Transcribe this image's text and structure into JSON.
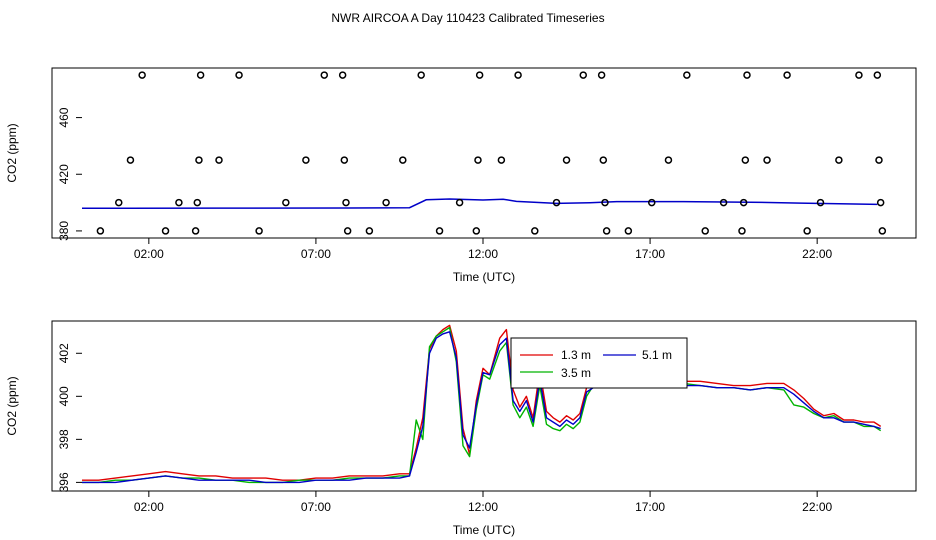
{
  "title": "NWR AIRCOA A  Day 110423  Calibrated Timeseries",
  "colors": {
    "s1": "#e00000",
    "s2": "#00b400",
    "s3": "#0000c8",
    "axis": "#000000"
  },
  "chart_data": [
    {
      "type": "scatter",
      "xlabel": "Time (UTC)",
      "ylabel": "CO2 (ppm)",
      "xlim": [
        0,
        24
      ],
      "ylim": [
        375,
        495
      ],
      "x_ticks": [
        2,
        7,
        12,
        17,
        22
      ],
      "x_tick_labels": [
        "02:00",
        "07:00",
        "12:00",
        "17:00",
        "22:00"
      ],
      "y_ticks": [
        380,
        420,
        460
      ],
      "y_tick_labels": [
        "380",
        "420",
        "460"
      ],
      "marker_series": {
        "name": "",
        "points": [
          [
            0.55,
            380
          ],
          [
            1.1,
            400
          ],
          [
            1.45,
            430
          ],
          [
            1.8,
            490
          ],
          [
            2.5,
            380
          ],
          [
            2.9,
            400
          ],
          [
            3.4,
            380
          ],
          [
            3.45,
            400
          ],
          [
            3.5,
            430
          ],
          [
            3.55,
            490
          ],
          [
            4.1,
            430
          ],
          [
            4.7,
            490
          ],
          [
            5.3,
            380
          ],
          [
            6.1,
            400
          ],
          [
            6.7,
            430
          ],
          [
            7.25,
            490
          ],
          [
            7.8,
            490
          ],
          [
            7.85,
            430
          ],
          [
            7.9,
            400
          ],
          [
            7.95,
            380
          ],
          [
            8.6,
            380
          ],
          [
            9.1,
            400
          ],
          [
            9.6,
            430
          ],
          [
            10.15,
            490
          ],
          [
            10.7,
            380
          ],
          [
            11.3,
            400
          ],
          [
            11.8,
            380
          ],
          [
            11.85,
            430
          ],
          [
            11.9,
            490
          ],
          [
            12.55,
            430
          ],
          [
            13.05,
            490
          ],
          [
            13.55,
            380
          ],
          [
            14.2,
            400
          ],
          [
            14.5,
            430
          ],
          [
            15.0,
            490
          ],
          [
            15.55,
            490
          ],
          [
            15.6,
            430
          ],
          [
            15.65,
            400
          ],
          [
            15.7,
            380
          ],
          [
            16.35,
            380
          ],
          [
            17.05,
            400
          ],
          [
            17.55,
            430
          ],
          [
            18.1,
            490
          ],
          [
            18.65,
            380
          ],
          [
            19.2,
            400
          ],
          [
            19.75,
            380
          ],
          [
            19.8,
            400
          ],
          [
            19.85,
            430
          ],
          [
            19.9,
            490
          ],
          [
            20.5,
            430
          ],
          [
            21.1,
            490
          ],
          [
            21.7,
            380
          ],
          [
            22.1,
            400
          ],
          [
            22.65,
            430
          ],
          [
            23.25,
            490
          ],
          [
            23.8,
            490
          ],
          [
            23.85,
            430
          ],
          [
            23.9,
            400
          ],
          [
            23.95,
            380
          ]
        ]
      },
      "line_series": {
        "name": "",
        "points": [
          [
            0.0,
            396.0
          ],
          [
            4.0,
            396.1
          ],
          [
            8.0,
            396.2
          ],
          [
            9.8,
            396.4
          ],
          [
            10.3,
            402.0
          ],
          [
            11.0,
            402.5
          ],
          [
            12.0,
            401.8
          ],
          [
            12.6,
            402.4
          ],
          [
            13.0,
            400.8
          ],
          [
            14.2,
            399.4
          ],
          [
            15.2,
            399.9
          ],
          [
            16.0,
            400.7
          ],
          [
            18.0,
            400.7
          ],
          [
            20.0,
            400.3
          ],
          [
            21.5,
            399.6
          ],
          [
            23.8,
            398.7
          ]
        ]
      }
    },
    {
      "type": "line",
      "xlabel": "Time (UTC)",
      "ylabel": "CO2 (ppm)",
      "xlim": [
        0,
        24
      ],
      "ylim": [
        395.6,
        403.5
      ],
      "x_ticks": [
        2,
        7,
        12,
        17,
        22
      ],
      "x_tick_labels": [
        "02:00",
        "07:00",
        "12:00",
        "17:00",
        "22:00"
      ],
      "y_ticks": [
        396,
        398,
        400,
        402
      ],
      "y_tick_labels": [
        "396",
        "398",
        "400",
        "402"
      ],
      "legend": {
        "placement": "top-center",
        "entries": [
          "1.3 m",
          "5.1 m",
          "3.5 m"
        ]
      },
      "series": [
        {
          "name": "1.3 m",
          "color_key": "s1",
          "x": [
            0.0,
            0.5,
            1.0,
            1.5,
            2.0,
            2.5,
            3.0,
            3.5,
            4.0,
            4.5,
            5.0,
            5.5,
            6.0,
            6.5,
            7.0,
            7.5,
            8.0,
            8.5,
            9.0,
            9.5,
            9.8,
            10.0,
            10.2,
            10.4,
            10.6,
            10.8,
            11.0,
            11.2,
            11.4,
            11.6,
            11.8,
            12.0,
            12.2,
            12.5,
            12.7,
            12.9,
            13.1,
            13.3,
            13.5,
            13.7,
            13.9,
            14.1,
            14.3,
            14.5,
            14.7,
            14.9,
            15.1,
            15.3,
            15.5,
            15.8,
            16.0,
            16.5,
            17.0,
            17.5,
            18.0,
            18.5,
            19.0,
            19.5,
            20.0,
            20.5,
            21.0,
            21.3,
            21.6,
            21.9,
            22.2,
            22.5,
            22.8,
            23.1,
            23.4,
            23.7,
            23.9
          ],
          "y": [
            396.1,
            396.1,
            396.2,
            396.3,
            396.4,
            396.5,
            396.4,
            396.3,
            396.3,
            396.2,
            396.2,
            396.2,
            396.1,
            396.1,
            396.2,
            396.2,
            396.3,
            396.3,
            396.3,
            396.4,
            396.4,
            397.6,
            399.0,
            402.2,
            402.8,
            403.1,
            403.3,
            402.1,
            398.5,
            397.3,
            399.8,
            401.3,
            401.0,
            402.7,
            403.1,
            400.3,
            399.5,
            400.0,
            399.0,
            401.2,
            399.3,
            399.0,
            398.8,
            399.1,
            398.9,
            399.2,
            400.4,
            400.6,
            400.8,
            400.9,
            400.9,
            400.9,
            400.8,
            400.8,
            400.7,
            400.7,
            400.6,
            400.5,
            400.5,
            400.6,
            400.6,
            400.3,
            399.9,
            399.4,
            399.1,
            399.2,
            398.9,
            398.9,
            398.8,
            398.8,
            398.6
          ]
        },
        {
          "name": "5.1 m",
          "color_key": "s3",
          "x": [
            0.0,
            0.5,
            1.0,
            1.5,
            2.0,
            2.5,
            3.0,
            3.5,
            4.0,
            4.5,
            5.0,
            5.5,
            6.0,
            6.5,
            7.0,
            7.5,
            8.0,
            8.5,
            9.0,
            9.5,
            9.8,
            10.0,
            10.2,
            10.4,
            10.6,
            10.8,
            11.0,
            11.2,
            11.4,
            11.6,
            11.8,
            12.0,
            12.2,
            12.5,
            12.7,
            12.9,
            13.1,
            13.3,
            13.5,
            13.7,
            13.9,
            14.1,
            14.3,
            14.5,
            14.7,
            14.9,
            15.1,
            15.3,
            15.5,
            15.8,
            16.0,
            16.5,
            17.0,
            17.5,
            18.0,
            18.5,
            19.0,
            19.5,
            20.0,
            20.5,
            21.0,
            21.3,
            21.6,
            21.9,
            22.2,
            22.5,
            22.8,
            23.1,
            23.4,
            23.7,
            23.9
          ],
          "y": [
            396.0,
            396.0,
            396.0,
            396.1,
            396.2,
            396.3,
            396.2,
            396.1,
            396.1,
            396.1,
            396.1,
            396.0,
            396.0,
            396.0,
            396.1,
            396.1,
            396.1,
            396.2,
            396.2,
            396.2,
            396.3,
            397.4,
            398.6,
            402.0,
            402.7,
            402.9,
            403.0,
            401.8,
            398.2,
            397.6,
            399.6,
            401.1,
            401.0,
            402.4,
            402.7,
            399.8,
            399.3,
            399.8,
            398.8,
            400.8,
            399.0,
            398.8,
            398.6,
            398.9,
            398.7,
            399.0,
            400.2,
            400.4,
            400.6,
            400.7,
            400.7,
            400.7,
            400.6,
            400.6,
            400.5,
            400.5,
            400.4,
            400.4,
            400.3,
            400.4,
            400.4,
            400.1,
            399.7,
            399.3,
            399.0,
            399.0,
            398.8,
            398.8,
            398.7,
            398.6,
            398.5
          ]
        },
        {
          "name": "3.5 m",
          "color_key": "s2",
          "x": [
            0.0,
            0.5,
            1.0,
            1.5,
            2.0,
            2.5,
            3.0,
            3.5,
            4.0,
            4.5,
            5.0,
            5.5,
            6.0,
            6.5,
            7.0,
            7.5,
            8.0,
            8.5,
            9.0,
            9.5,
            9.8,
            10.0,
            10.2,
            10.4,
            10.6,
            10.8,
            11.0,
            11.2,
            11.4,
            11.6,
            11.8,
            12.0,
            12.2,
            12.5,
            12.7,
            12.9,
            13.1,
            13.3,
            13.5,
            13.7,
            13.9,
            14.1,
            14.3,
            14.5,
            14.7,
            14.9,
            15.1,
            15.3,
            15.5,
            15.8,
            16.0,
            16.5,
            17.0,
            17.5,
            18.0,
            18.5,
            19.0,
            19.5,
            20.0,
            20.5,
            21.0,
            21.3,
            21.6,
            21.9,
            22.2,
            22.5,
            22.8,
            23.1,
            23.4,
            23.7,
            23.9
          ],
          "y": [
            396.0,
            396.0,
            396.1,
            396.1,
            396.2,
            396.3,
            396.2,
            396.2,
            396.1,
            396.1,
            396.0,
            396.0,
            396.0,
            396.1,
            396.1,
            396.1,
            396.2,
            396.2,
            396.2,
            396.3,
            396.3,
            398.9,
            398.0,
            402.3,
            402.8,
            403.0,
            403.2,
            401.6,
            397.7,
            397.2,
            399.4,
            401.0,
            400.8,
            402.1,
            402.5,
            399.6,
            399.0,
            399.5,
            398.6,
            400.5,
            398.7,
            398.5,
            398.4,
            398.7,
            398.5,
            398.8,
            400.0,
            400.5,
            400.7,
            400.8,
            400.8,
            400.8,
            400.7,
            400.7,
            400.6,
            400.5,
            400.4,
            400.4,
            400.3,
            400.4,
            400.3,
            399.6,
            399.5,
            399.2,
            399.0,
            399.1,
            398.8,
            398.8,
            398.6,
            398.6,
            398.4
          ]
        }
      ]
    }
  ]
}
